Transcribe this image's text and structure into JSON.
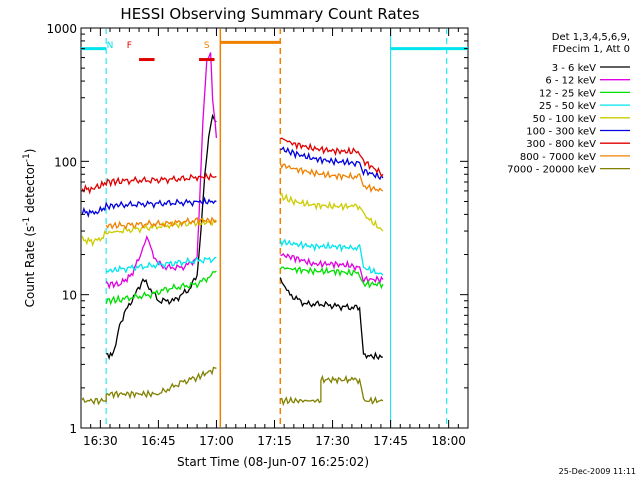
{
  "chart_data": {
    "type": "line",
    "title": "HESSI Observing Summary Count Rates",
    "xlabel": "Start Time (08-Jun-07 16:25:02)",
    "ylabel_main": "Count Rate (s",
    "ylabel_sup1": "-1",
    "ylabel_mid": " detector",
    "ylabel_sup2": "-1",
    "ylabel_end": ")",
    "yscale": "log",
    "ylim": [
      1,
      1000
    ],
    "xlim_minutes": [
      0,
      100
    ],
    "x_unit": "minutes after 16:25:02",
    "ytick_labels": [
      "1",
      "10",
      "100",
      "1000"
    ],
    "ytick_values": [
      1,
      10,
      100,
      1000
    ],
    "xtick_labels": [
      "16:30",
      "16:45",
      "17:00",
      "17:15",
      "17:30",
      "17:45",
      "18:00"
    ],
    "xtick_values": [
      5,
      20,
      35,
      50,
      65,
      80,
      95
    ],
    "legend_header": [
      "Det 1,3,4,5,6,9,",
      "FDecim 1, Att 0"
    ],
    "legend_placement": "right",
    "footer_date": "25-Dec-2009 11:11",
    "annotations": [
      {
        "text": "N",
        "x": 7.5,
        "color": "#00e5ee"
      },
      {
        "text": "F",
        "x": 12.5,
        "color": "#e00000"
      },
      {
        "text": "S",
        "x": 32.5,
        "color": "#f08000"
      }
    ],
    "bars": [
      {
        "label": "night",
        "x0": 0,
        "x1": 6.5,
        "y": 700,
        "color": "#00e5ee"
      },
      {
        "label": "night",
        "x0": 80,
        "x1": 100,
        "y": 700,
        "color": "#00e5ee"
      },
      {
        "label": "flare",
        "x0": 15,
        "x1": 19,
        "y": 580,
        "color": "#e00000"
      },
      {
        "label": "flare",
        "x0": 30.5,
        "x1": 34.5,
        "y": 580,
        "color": "#e00000"
      },
      {
        "label": "saa",
        "x0": 36,
        "x1": 51.5,
        "y": 780,
        "color": "#f08000"
      }
    ],
    "vlines": [
      {
        "x": 0,
        "color": "#00e5ee",
        "dash": true
      },
      {
        "x": 6.5,
        "color": "#00e5ee",
        "dash": true
      },
      {
        "x": 80,
        "color": "#00e5ee",
        "dash": false
      },
      {
        "x": 94.5,
        "color": "#00e5ee",
        "dash": true
      },
      {
        "x": 36,
        "color": "#f08000",
        "dash": false
      },
      {
        "x": 51.5,
        "color": "#f08000",
        "dash": true
      }
    ],
    "series": [
      {
        "name": "3 - 6 keV",
        "color": "#000000",
        "segments": [
          [
            [
              6.5,
              3.6
            ],
            [
              8,
              3.5
            ],
            [
              9,
              4.0
            ],
            [
              10,
              6
            ],
            [
              12,
              8
            ],
            [
              14,
              10
            ],
            [
              16,
              13
            ],
            [
              18,
              11
            ],
            [
              20,
              9
            ],
            [
              22,
              9
            ],
            [
              24,
              9
            ],
            [
              26,
              10
            ],
            [
              28,
              11
            ],
            [
              30,
              14
            ],
            [
              31,
              30
            ],
            [
              32,
              80
            ],
            [
              33,
              160
            ],
            [
              34,
              220
            ],
            [
              35,
              200
            ]
          ],
          [
            [
              51.5,
              13.5
            ],
            [
              54,
              10
            ],
            [
              58,
              8.5
            ],
            [
              62,
              8.5
            ],
            [
              66,
              8.2
            ],
            [
              70,
              8
            ],
            [
              72,
              8
            ],
            [
              73,
              3.5
            ],
            [
              78,
              3.4
            ]
          ]
        ]
      },
      {
        "name": "6 - 12 keV",
        "color": "#e000e0",
        "segments": [
          [
            [
              6.5,
              12
            ],
            [
              10,
              12
            ],
            [
              13,
              14
            ],
            [
              16,
              22
            ],
            [
              17,
              27
            ],
            [
              18,
              22
            ],
            [
              20,
              17
            ],
            [
              22,
              16
            ],
            [
              24,
              16
            ],
            [
              26,
              16
            ],
            [
              28,
              17
            ],
            [
              30,
              19
            ],
            [
              30.5,
              40
            ],
            [
              31.5,
              200
            ],
            [
              32.5,
              600
            ],
            [
              33.5,
              650
            ],
            [
              34,
              300
            ],
            [
              35,
              150
            ]
          ],
          [
            [
              51.5,
              20
            ],
            [
              55,
              19
            ],
            [
              60,
              17
            ],
            [
              65,
              17
            ],
            [
              70,
              16.5
            ],
            [
              72,
              16
            ],
            [
              73,
              13
            ],
            [
              78,
              13
            ]
          ]
        ]
      },
      {
        "name": "12 - 25 keV",
        "color": "#00e000",
        "segments": [
          [
            [
              6.5,
              9
            ],
            [
              10,
              9.2
            ],
            [
              14,
              9.6
            ],
            [
              18,
              10
            ],
            [
              22,
              11
            ],
            [
              26,
              11.5
            ],
            [
              30,
              12
            ],
            [
              32,
              13
            ],
            [
              34,
              14
            ],
            [
              35,
              15
            ]
          ],
          [
            [
              51.5,
              16
            ],
            [
              55,
              15.5
            ],
            [
              60,
              15
            ],
            [
              65,
              15
            ],
            [
              70,
              14.5
            ],
            [
              72,
              14.5
            ],
            [
              73,
              12
            ],
            [
              78,
              12
            ]
          ]
        ]
      },
      {
        "name": "25 - 50 keV",
        "color": "#00e5ee",
        "segments": [
          [
            [
              6.5,
              15
            ],
            [
              10,
              15.5
            ],
            [
              14,
              16
            ],
            [
              18,
              16.5
            ],
            [
              22,
              17
            ],
            [
              26,
              17.5
            ],
            [
              30,
              18
            ],
            [
              34,
              18.5
            ],
            [
              35,
              19
            ]
          ],
          [
            [
              51.5,
              25
            ],
            [
              55,
              24
            ],
            [
              60,
              23
            ],
            [
              65,
              23
            ],
            [
              70,
              22.5
            ],
            [
              72,
              22.5
            ],
            [
              73,
              16
            ],
            [
              78,
              14
            ]
          ]
        ]
      },
      {
        "name": "50 - 100 keV",
        "color": "#cccc00",
        "segments": [
          [
            [
              -1,
              28
            ],
            [
              0,
              26
            ],
            [
              3,
              25
            ],
            [
              5,
              26
            ],
            [
              6.5,
              29
            ],
            [
              10,
              30
            ],
            [
              14,
              31
            ],
            [
              18,
              32
            ],
            [
              22,
              33
            ],
            [
              26,
              34
            ],
            [
              30,
              34.5
            ],
            [
              35,
              35
            ]
          ],
          [
            [
              51.5,
              55
            ],
            [
              55,
              50
            ],
            [
              60,
              47
            ],
            [
              65,
              46
            ],
            [
              70,
              46
            ],
            [
              72,
              46
            ],
            [
              73,
              40
            ],
            [
              78,
              30
            ]
          ]
        ]
      },
      {
        "name": "100 - 300 keV",
        "color": "#0000e0",
        "segments": [
          [
            [
              -1,
              45
            ],
            [
              0,
              42
            ],
            [
              3,
              41
            ],
            [
              5,
              43
            ],
            [
              6.5,
              46
            ],
            [
              10,
              47
            ],
            [
              14,
              47.5
            ],
            [
              18,
              48
            ],
            [
              22,
              48.5
            ],
            [
              26,
              49
            ],
            [
              30,
              49.5
            ],
            [
              35,
              50
            ]
          ],
          [
            [
              51.5,
              125
            ],
            [
              55,
              115
            ],
            [
              60,
              105
            ],
            [
              65,
              100
            ],
            [
              70,
              98
            ],
            [
              72,
              97
            ],
            [
              73,
              85
            ],
            [
              78,
              75
            ]
          ]
        ]
      },
      {
        "name": "300 - 800 keV",
        "color": "#e00000",
        "segments": [
          [
            [
              -1,
              65
            ],
            [
              0,
              62
            ],
            [
              3,
              62
            ],
            [
              5,
              65
            ],
            [
              6.5,
              70
            ],
            [
              10,
              71
            ],
            [
              14,
              72
            ],
            [
              18,
              72
            ],
            [
              22,
              73
            ],
            [
              26,
              74
            ],
            [
              30,
              76
            ],
            [
              35,
              77
            ]
          ],
          [
            [
              51.5,
              150
            ],
            [
              55,
              135
            ],
            [
              60,
              125
            ],
            [
              65,
              120
            ],
            [
              70,
              118
            ],
            [
              72,
              118
            ],
            [
              73,
              100
            ],
            [
              78,
              80
            ]
          ]
        ]
      },
      {
        "name": "800 - 7000 keV",
        "color": "#f08000",
        "segments": [
          [
            [
              6.5,
              33
            ],
            [
              10,
              33
            ],
            [
              14,
              33.5
            ],
            [
              18,
              34
            ],
            [
              22,
              34
            ],
            [
              26,
              35
            ],
            [
              30,
              36
            ],
            [
              35,
              36
            ]
          ],
          [
            [
              51.5,
              95
            ],
            [
              55,
              88
            ],
            [
              60,
              82
            ],
            [
              65,
              78
            ],
            [
              70,
              77
            ],
            [
              72,
              77
            ],
            [
              73,
              65
            ],
            [
              78,
              60
            ]
          ]
        ]
      },
      {
        "name": "7000 - 20000 keV",
        "color": "#808000",
        "segments": [
          [
            [
              -1,
              1.6
            ],
            [
              6.5,
              1.6
            ],
            [
              6.5,
              1.8
            ],
            [
              20,
              1.8
            ],
            [
              26,
              2.2
            ],
            [
              30,
              2.4
            ],
            [
              35,
              2.8
            ]
          ],
          [
            [
              51.5,
              1.6
            ],
            [
              62,
              1.6
            ],
            [
              62,
              2.3
            ],
            [
              70,
              2.3
            ],
            [
              72,
              2.3
            ],
            [
              73,
              1.6
            ],
            [
              78,
              1.6
            ]
          ]
        ]
      }
    ]
  }
}
